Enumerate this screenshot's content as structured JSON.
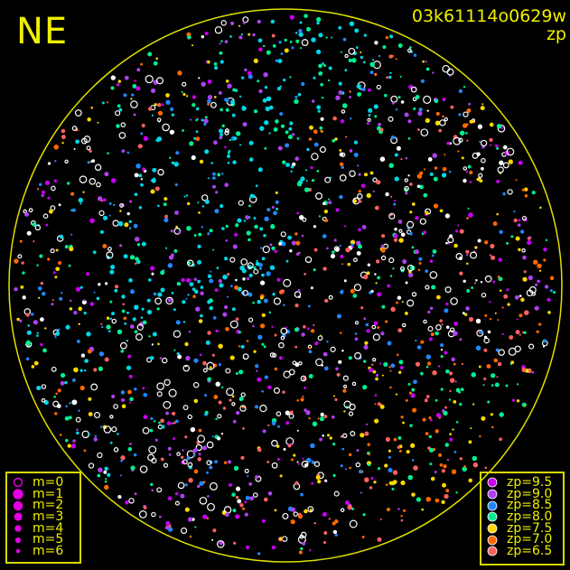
{
  "direction_label": "NE",
  "image_id": "03k61114o0629w",
  "color_mode": "zp",
  "horizon_color": "#e0e000",
  "magnitude_legend": [
    {
      "label": "m=0",
      "style": "ring"
    },
    {
      "label": "m=1",
      "style": "dot"
    },
    {
      "label": "m=2",
      "style": "dot"
    },
    {
      "label": "m=3",
      "style": "dot"
    },
    {
      "label": "m=4",
      "style": "dot"
    },
    {
      "label": "m=5",
      "style": "dot"
    },
    {
      "label": "m=6",
      "style": "dot"
    }
  ],
  "magnitude_legend_color": "#e000e0",
  "zp_legend": [
    {
      "label": "zp=9.5",
      "color": "#c800f0"
    },
    {
      "label": "zp=9.0",
      "color": "#b040f0"
    },
    {
      "label": "zp=8.5",
      "color": "#2088ff"
    },
    {
      "label": "zp=8.0",
      "color": "#00f090"
    },
    {
      "label": "zp=7.5",
      "color": "#ffd800"
    },
    {
      "label": "zp=7.0",
      "color": "#ff6800"
    },
    {
      "label": "zp=6.5",
      "color": "#ff6060"
    }
  ],
  "undetected_star_color": "#ffffff"
}
